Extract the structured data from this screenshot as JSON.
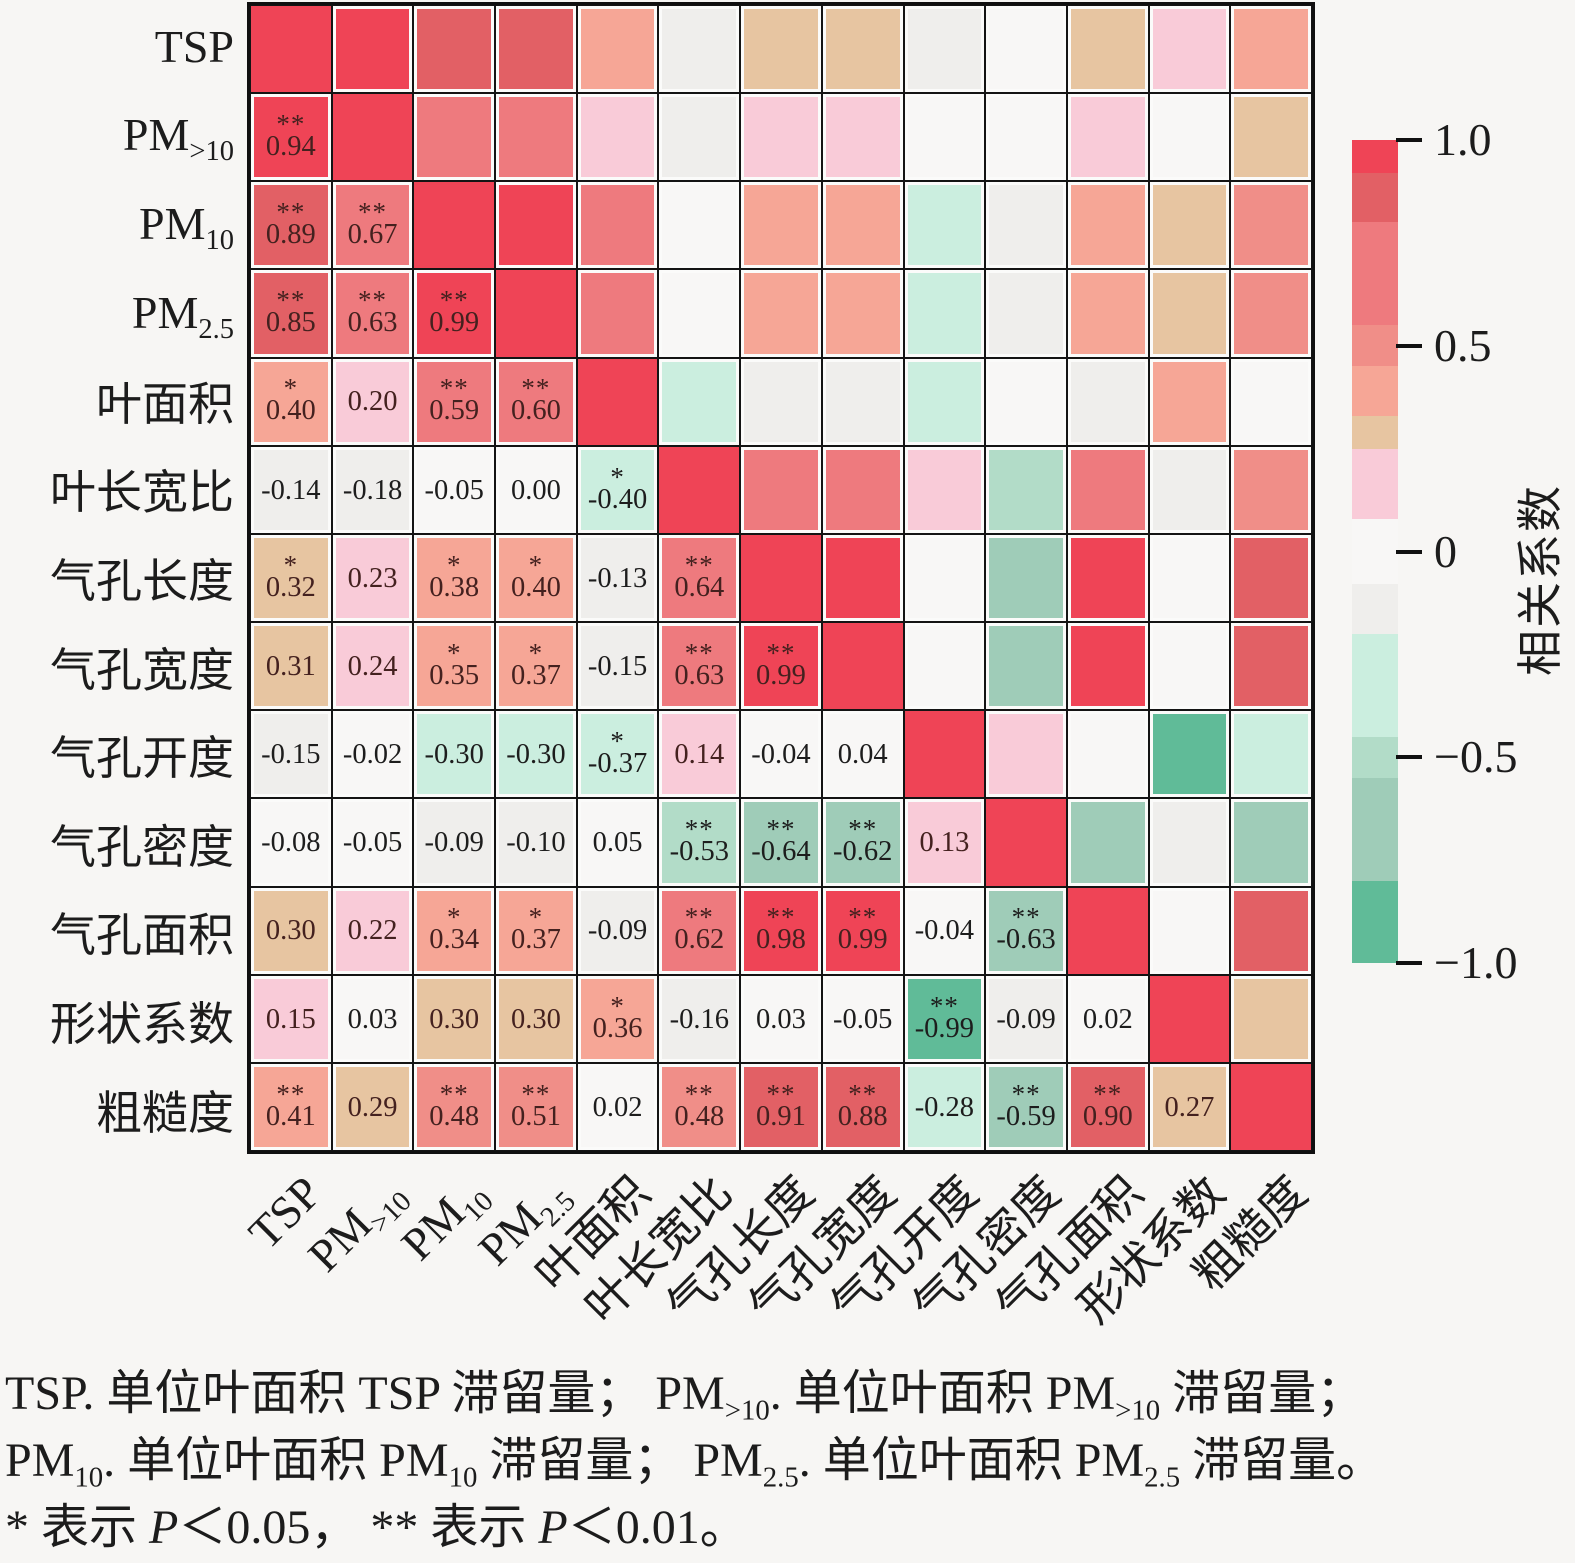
{
  "chart_data": {
    "type": "heatmap",
    "title": "",
    "subtitle": "",
    "legend_position": "right",
    "grid": "on",
    "categories": [
      "TSP",
      "PM>10",
      "PM10",
      "PM2.5",
      "叶面积",
      "叶长宽比",
      "气孔长度",
      "气孔宽度",
      "气孔开度",
      "气孔密度",
      "气孔面积",
      "形状系数",
      "粗糙度"
    ],
    "axis_labels": [
      {
        "text": "TSP",
        "sub": ""
      },
      {
        "text": "PM",
        "sub": ">10"
      },
      {
        "text": "PM",
        "sub": "10"
      },
      {
        "text": "PM",
        "sub": "2.5"
      },
      {
        "text": "叶面积",
        "sub": ""
      },
      {
        "text": "叶长宽比",
        "sub": ""
      },
      {
        "text": "气孔长度",
        "sub": ""
      },
      {
        "text": "气孔宽度",
        "sub": ""
      },
      {
        "text": "气孔开度",
        "sub": ""
      },
      {
        "text": "气孔密度",
        "sub": ""
      },
      {
        "text": "气孔面积",
        "sub": ""
      },
      {
        "text": "形状系数",
        "sub": ""
      },
      {
        "text": "粗糙度",
        "sub": ""
      }
    ],
    "diagonal_value": 1.0,
    "matrix_lower": [
      [],
      [
        {
          "v": 0.94,
          "sig": "**"
        }
      ],
      [
        {
          "v": 0.89,
          "sig": "**"
        },
        {
          "v": 0.67,
          "sig": "**"
        }
      ],
      [
        {
          "v": 0.85,
          "sig": "**"
        },
        {
          "v": 0.63,
          "sig": "**"
        },
        {
          "v": 0.99,
          "sig": "**"
        }
      ],
      [
        {
          "v": 0.4,
          "sig": "*"
        },
        {
          "v": 0.2,
          "sig": ""
        },
        {
          "v": 0.59,
          "sig": "**"
        },
        {
          "v": 0.6,
          "sig": "**"
        }
      ],
      [
        {
          "v": -0.14,
          "sig": ""
        },
        {
          "v": -0.18,
          "sig": ""
        },
        {
          "v": -0.05,
          "sig": ""
        },
        {
          "v": 0.0,
          "sig": ""
        },
        {
          "v": -0.4,
          "sig": "*"
        }
      ],
      [
        {
          "v": 0.32,
          "sig": "*"
        },
        {
          "v": 0.23,
          "sig": ""
        },
        {
          "v": 0.38,
          "sig": "*"
        },
        {
          "v": 0.4,
          "sig": "*"
        },
        {
          "v": -0.13,
          "sig": ""
        },
        {
          "v": 0.64,
          "sig": "**"
        }
      ],
      [
        {
          "v": 0.31,
          "sig": ""
        },
        {
          "v": 0.24,
          "sig": ""
        },
        {
          "v": 0.35,
          "sig": "*"
        },
        {
          "v": 0.37,
          "sig": "*"
        },
        {
          "v": -0.15,
          "sig": ""
        },
        {
          "v": 0.63,
          "sig": "**"
        },
        {
          "v": 0.99,
          "sig": "**"
        }
      ],
      [
        {
          "v": -0.15,
          "sig": ""
        },
        {
          "v": -0.02,
          "sig": ""
        },
        {
          "v": -0.3,
          "sig": ""
        },
        {
          "v": -0.3,
          "sig": ""
        },
        {
          "v": -0.37,
          "sig": "*"
        },
        {
          "v": 0.14,
          "sig": ""
        },
        {
          "v": -0.04,
          "sig": ""
        },
        {
          "v": 0.04,
          "sig": ""
        }
      ],
      [
        {
          "v": -0.08,
          "sig": ""
        },
        {
          "v": -0.05,
          "sig": ""
        },
        {
          "v": -0.09,
          "sig": ""
        },
        {
          "v": -0.1,
          "sig": ""
        },
        {
          "v": 0.05,
          "sig": ""
        },
        {
          "v": -0.53,
          "sig": "**"
        },
        {
          "v": -0.64,
          "sig": "**"
        },
        {
          "v": -0.62,
          "sig": "**"
        },
        {
          "v": 0.13,
          "sig": ""
        }
      ],
      [
        {
          "v": 0.3,
          "sig": ""
        },
        {
          "v": 0.22,
          "sig": ""
        },
        {
          "v": 0.34,
          "sig": "*"
        },
        {
          "v": 0.37,
          "sig": "*"
        },
        {
          "v": -0.09,
          "sig": ""
        },
        {
          "v": 0.62,
          "sig": "**"
        },
        {
          "v": 0.98,
          "sig": "**"
        },
        {
          "v": 0.99,
          "sig": "**"
        },
        {
          "v": -0.04,
          "sig": ""
        },
        {
          "v": -0.63,
          "sig": "**"
        }
      ],
      [
        {
          "v": 0.15,
          "sig": ""
        },
        {
          "v": 0.03,
          "sig": ""
        },
        {
          "v": 0.3,
          "sig": ""
        },
        {
          "v": 0.3,
          "sig": ""
        },
        {
          "v": 0.36,
          "sig": "*"
        },
        {
          "v": -0.16,
          "sig": ""
        },
        {
          "v": 0.03,
          "sig": ""
        },
        {
          "v": -0.05,
          "sig": ""
        },
        {
          "v": -0.99,
          "sig": "**"
        },
        {
          "v": -0.09,
          "sig": ""
        },
        {
          "v": 0.02,
          "sig": ""
        }
      ],
      [
        {
          "v": 0.41,
          "sig": "**"
        },
        {
          "v": 0.29,
          "sig": ""
        },
        {
          "v": 0.48,
          "sig": "**"
        },
        {
          "v": 0.51,
          "sig": "**"
        },
        {
          "v": 0.02,
          "sig": ""
        },
        {
          "v": 0.48,
          "sig": "**"
        },
        {
          "v": 0.91,
          "sig": "**"
        },
        {
          "v": 0.88,
          "sig": "**"
        },
        {
          "v": -0.28,
          "sig": ""
        },
        {
          "v": -0.59,
          "sig": "**"
        },
        {
          "v": 0.9,
          "sig": "**"
        },
        {
          "v": 0.27,
          "sig": ""
        }
      ]
    ],
    "color_scale": [
      {
        "min": 0.92,
        "color": "#EF4456",
        "span": 0.04
      },
      {
        "min": 0.8,
        "color": "#E26065",
        "span": 0.06
      },
      {
        "min": 0.55,
        "color": "#EE7A7E",
        "span": 0.125
      },
      {
        "min": 0.45,
        "color": "#F08E88",
        "span": 0.05
      },
      {
        "min": 0.33,
        "color": "#F6A696",
        "span": 0.06
      },
      {
        "min": 0.25,
        "color": "#E7C5A1",
        "span": 0.04
      },
      {
        "min": 0.08,
        "color": "#F9CBD8",
        "span": 0.085
      },
      {
        "min": -0.08,
        "color": "#F8F7F6",
        "span": 0.08
      },
      {
        "min": -0.2,
        "color": "#EFEEEC",
        "span": 0.06
      },
      {
        "min": -0.45,
        "color": "#CBEEDF",
        "span": 0.125
      },
      {
        "min": -0.55,
        "color": "#B2DCC8",
        "span": 0.05
      },
      {
        "min": -0.8,
        "color": "#9FCCB8",
        "span": 0.125
      },
      {
        "min": -9.99,
        "color": "#60BB98",
        "span": 0.1
      }
    ],
    "colorbar": {
      "label": "相关系数",
      "range": [
        -1,
        1
      ],
      "ticks": [
        {
          "label": "1.0",
          "pos": 0.0
        },
        {
          "label": "0.5",
          "pos": 0.25
        },
        {
          "label": "0",
          "pos": 0.5
        },
        {
          "label": "−0.5",
          "pos": 0.75
        },
        {
          "label": "−1.0",
          "pos": 1.0
        }
      ]
    }
  },
  "caption": {
    "lines": [
      [
        {
          "text": "TSP. 单位叶面积 TSP 滞留量； PM",
          "style": "n"
        },
        {
          "text": ">10",
          "style": "sub"
        },
        {
          "text": ". 单位叶面积 PM",
          "style": "n"
        },
        {
          "text": ">10",
          "style": "sub"
        },
        {
          "text": " 滞留量；",
          "style": "n"
        }
      ],
      [
        {
          "text": "PM",
          "style": "n"
        },
        {
          "text": "10",
          "style": "sub"
        },
        {
          "text": ". 单位叶面积 PM",
          "style": "n"
        },
        {
          "text": "10",
          "style": "sub"
        },
        {
          "text": " 滞留量； PM",
          "style": "n"
        },
        {
          "text": "2.5",
          "style": "sub"
        },
        {
          "text": ". 单位叶面积 PM",
          "style": "n"
        },
        {
          "text": "2.5",
          "style": "sub"
        },
        {
          "text": " 滞留量。",
          "style": "n"
        }
      ],
      [
        {
          "text": "* 表示 ",
          "style": "n"
        },
        {
          "text": "P",
          "style": "i"
        },
        {
          "text": "＜0.05， ** 表示 ",
          "style": "n"
        },
        {
          "text": "P",
          "style": "i"
        },
        {
          "text": "＜0.01。",
          "style": "n"
        }
      ]
    ]
  },
  "style_colors": {
    "value_text_positive": "#44211f",
    "value_text_neutral": "#1d1d1d",
    "grid_line": "#141414",
    "background": "#f7f6f4"
  }
}
